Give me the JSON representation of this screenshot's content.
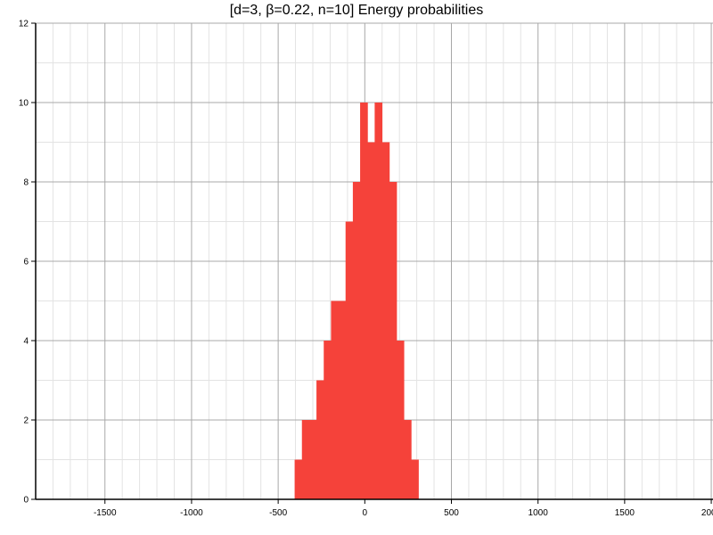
{
  "chart_data": {
    "type": "bar",
    "title": "[d=3, β=0.22, n=10] Energy probabilities",
    "xlabel": "",
    "ylabel": "",
    "xlim": [
      -1900,
      2010
    ],
    "ylim": [
      0,
      12
    ],
    "x_ticks": [
      "-1500",
      "-1000",
      "-500",
      "0",
      "500",
      "1000",
      "1500",
      "2000"
    ],
    "y_ticks": [
      "0",
      "2",
      "4",
      "6",
      "8",
      "10",
      "12"
    ],
    "grid": true,
    "bar_color": "#f5423a",
    "bins": [
      {
        "x0": -405,
        "x1": -363,
        "value": 1
      },
      {
        "x0": -363,
        "x1": -321,
        "value": 2
      },
      {
        "x0": -321,
        "x1": -279,
        "value": 2
      },
      {
        "x0": -279,
        "x1": -237,
        "value": 3
      },
      {
        "x0": -237,
        "x1": -195,
        "value": 4
      },
      {
        "x0": -195,
        "x1": -153,
        "value": 5
      },
      {
        "x0": -153,
        "x1": -111,
        "value": 5
      },
      {
        "x0": -111,
        "x1": -69,
        "value": 7
      },
      {
        "x0": -69,
        "x1": -27,
        "value": 8
      },
      {
        "x0": -27,
        "x1": 15,
        "value": 10
      },
      {
        "x0": 15,
        "x1": 57,
        "value": 9
      },
      {
        "x0": 57,
        "x1": 99,
        "value": 10
      },
      {
        "x0": 99,
        "x1": 141,
        "value": 9
      },
      {
        "x0": 141,
        "x1": 183,
        "value": 8
      },
      {
        "x0": 183,
        "x1": 225,
        "value": 4
      },
      {
        "x0": 225,
        "x1": 267,
        "value": 2
      },
      {
        "x0": 267,
        "x1": 309,
        "value": 1
      }
    ]
  }
}
